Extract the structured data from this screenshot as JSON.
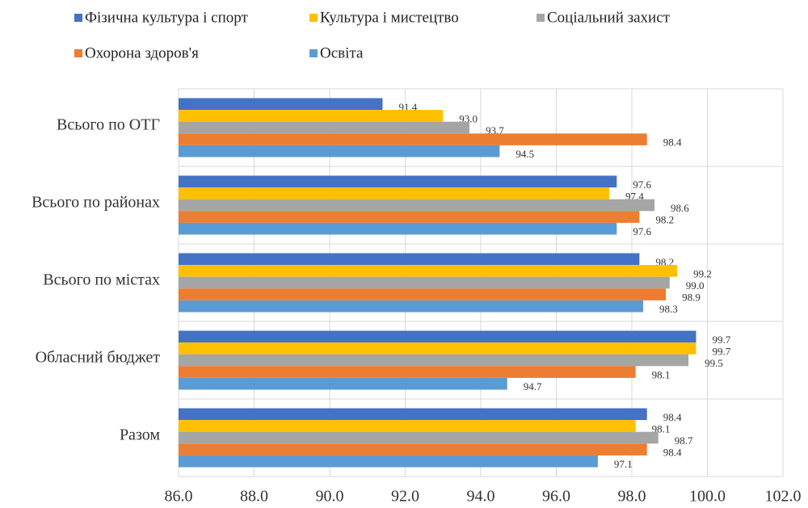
{
  "chart_data": {
    "type": "bar",
    "orientation": "horizontal",
    "categories": [
      "Всього по ОТГ",
      "Всього по районах",
      "Всього по містах",
      "Обласний бюджет",
      "Разом"
    ],
    "series": [
      {
        "name": "Фізична культура і спорт",
        "color": "#4472c4",
        "values": [
          91.4,
          97.6,
          98.2,
          99.7,
          98.4
        ],
        "value_labels": [
          "91.4",
          "97.6",
          "98.2",
          "99.7",
          "98.4"
        ]
      },
      {
        "name": "Культура і мистецтво",
        "color": "#ffc000",
        "values": [
          93.0,
          97.4,
          99.2,
          99.7,
          98.1
        ],
        "value_labels": [
          "93.0",
          "97.4",
          "99.2",
          "99.7",
          "98.1"
        ]
      },
      {
        "name": "Соціальний захист",
        "color": "#a5a5a5",
        "values": [
          93.7,
          98.6,
          99.0,
          99.5,
          98.7
        ],
        "value_labels": [
          "93.7",
          "98.6",
          "99.0",
          "99.5",
          "98.7"
        ]
      },
      {
        "name": "Охорона здоров'я",
        "color": "#ed7d31",
        "values": [
          98.4,
          98.2,
          98.9,
          98.1,
          98.4
        ],
        "value_labels": [
          "98.4",
          "98.2",
          "98.9",
          "98.1",
          "98.4"
        ]
      },
      {
        "name": "Освіта",
        "color": "#5b9bd5",
        "values": [
          94.5,
          97.6,
          98.3,
          94.7,
          97.1
        ],
        "value_labels": [
          "94.5",
          "97.6",
          "98.3",
          "94.7",
          "97.1"
        ]
      }
    ],
    "xlim": [
      86,
      102
    ],
    "xticks": [
      {
        "value": 86,
        "label": "86.0"
      },
      {
        "value": 88,
        "label": "88.0"
      },
      {
        "value": 90,
        "label": "90.0"
      },
      {
        "value": 92,
        "label": "92.0"
      },
      {
        "value": 94,
        "label": "94.0"
      },
      {
        "value": 96,
        "label": "96.0"
      },
      {
        "value": 98,
        "label": "98.0"
      },
      {
        "value": 100,
        "label": "100.0"
      },
      {
        "value": 102,
        "label": "102.0"
      }
    ],
    "grid": true,
    "legend": "top"
  }
}
